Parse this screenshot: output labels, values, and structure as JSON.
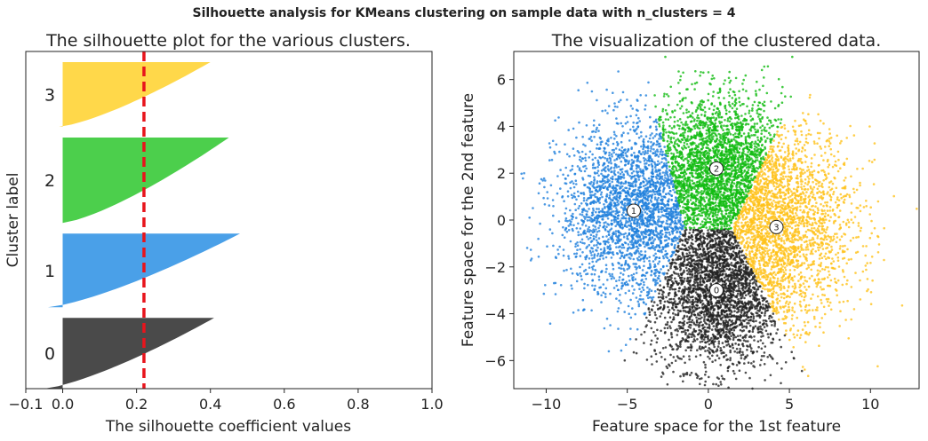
{
  "suptitle": "Silhouette analysis for KMeans clustering on sample data with n_clusters = 4",
  "colors": {
    "cluster_0": "#4a4a4a",
    "cluster_1": "#4aa0e8",
    "cluster_2": "#4ccf4c",
    "cluster_3": "#ffd84a",
    "scatter_0": "#222222",
    "scatter_1": "#1f7fdc",
    "scatter_2": "#11bb11",
    "scatter_3": "#ffc21a",
    "avg_line": "#e8141c"
  },
  "chart_data": [
    {
      "type": "area",
      "title": "The silhouette plot for the various clusters.",
      "xlabel": "The silhouette coefficient values",
      "ylabel": "Cluster label",
      "xlim": [
        -0.1,
        1.0
      ],
      "xticks": [
        -0.1,
        0.0,
        0.2,
        0.4,
        0.6,
        0.8,
        1.0
      ],
      "xtick_labels": [
        "−0.1",
        "0.0",
        "0.2",
        "0.4",
        "0.6",
        "0.8",
        "1.0"
      ],
      "grid": false,
      "average_silhouette": 0.22,
      "clusters": [
        {
          "label": "0",
          "min": -0.05,
          "max": 0.41,
          "size_share": 0.24
        },
        {
          "label": "1",
          "min": -0.04,
          "max": 0.48,
          "size_share": 0.25
        },
        {
          "label": "2",
          "min": 0.0,
          "max": 0.45,
          "size_share": 0.29
        },
        {
          "label": "3",
          "min": -0.01,
          "max": 0.4,
          "size_share": 0.22
        }
      ]
    },
    {
      "type": "scatter",
      "title": "The visualization of the clustered data.",
      "xlabel": "Feature space for the 1st feature",
      "ylabel": "Feature space for the 2nd feature",
      "xlim": [
        -12,
        13
      ],
      "ylim": [
        -7.2,
        7.2
      ],
      "xticks": [
        -10,
        -5,
        0,
        5,
        10
      ],
      "xtick_labels": [
        "−10",
        "−5",
        "0",
        "5",
        "10"
      ],
      "yticks": [
        -6,
        -4,
        -2,
        0,
        2,
        4,
        6
      ],
      "ytick_labels": [
        "−6",
        "−4",
        "−2",
        "0",
        "2",
        "4",
        "6"
      ],
      "grid": false,
      "centers": [
        {
          "label": "0",
          "x": 0.5,
          "y": -3.0
        },
        {
          "label": "1",
          "x": -4.6,
          "y": 0.4
        },
        {
          "label": "2",
          "x": 0.5,
          "y": 2.2
        },
        {
          "label": "3",
          "x": 4.2,
          "y": -0.3
        }
      ],
      "points_per_cluster": 2500
    }
  ]
}
